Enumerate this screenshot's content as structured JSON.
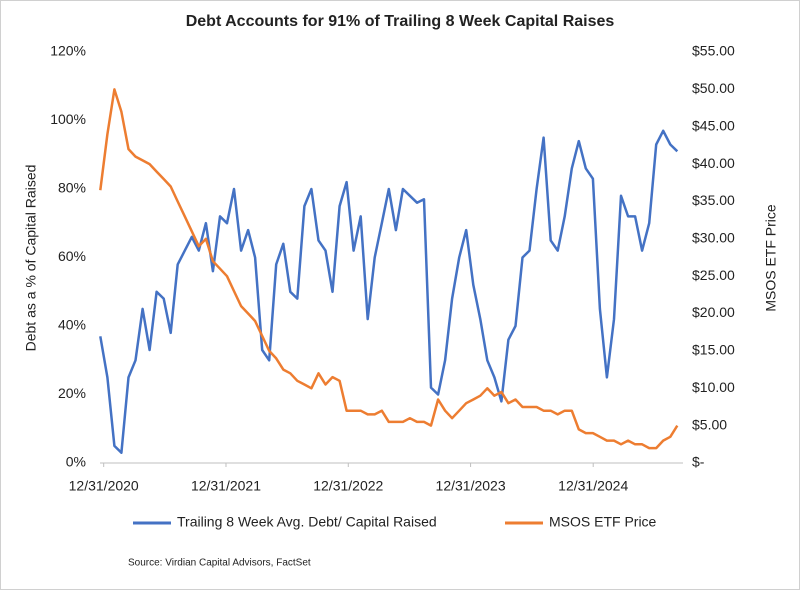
{
  "chart_data": {
    "type": "line",
    "title": "Debt Accounts for 91% of Trailing 8 Week Capital Raises",
    "y_label": "Debt as a % of Capital Raised",
    "y2_label": "MSOS ETF Price",
    "source": "Source: Virdian Capital Advisors, FactSet",
    "x": [
      "2020-12-21",
      "2021-01-11",
      "2021-02-01",
      "2021-02-22",
      "2021-03-15",
      "2021-04-05",
      "2021-04-26",
      "2021-05-17",
      "2021-06-07",
      "2021-06-28",
      "2021-07-19",
      "2021-08-09",
      "2021-08-30",
      "2021-09-20",
      "2021-10-11",
      "2021-11-01",
      "2021-11-22",
      "2021-12-13",
      "2022-01-03",
      "2022-01-24",
      "2022-02-14",
      "2022-03-07",
      "2022-03-28",
      "2022-04-18",
      "2022-05-09",
      "2022-05-30",
      "2022-06-20",
      "2022-07-11",
      "2022-08-01",
      "2022-08-22",
      "2022-09-12",
      "2022-10-03",
      "2022-10-24",
      "2022-11-14",
      "2022-12-05",
      "2022-12-26",
      "2023-01-16",
      "2023-02-06",
      "2023-02-27",
      "2023-03-20",
      "2023-04-10",
      "2023-05-01",
      "2023-05-22",
      "2023-06-12",
      "2023-07-03",
      "2023-07-24",
      "2023-08-14",
      "2023-09-04",
      "2023-09-25",
      "2023-10-16",
      "2023-11-06",
      "2023-11-27",
      "2023-12-18",
      "2024-01-08",
      "2024-01-29",
      "2024-02-19",
      "2024-03-11",
      "2024-04-01",
      "2024-04-22",
      "2024-05-13",
      "2024-06-03",
      "2024-06-24",
      "2024-07-15",
      "2024-08-05",
      "2024-08-26",
      "2024-09-16",
      "2024-10-07",
      "2024-10-28",
      "2024-11-18",
      "2024-12-09",
      "2024-12-30",
      "2025-01-20",
      "2025-02-10",
      "2025-03-03",
      "2025-03-24",
      "2025-04-14",
      "2025-05-05",
      "2025-05-26",
      "2025-06-16",
      "2025-07-07",
      "2025-07-28",
      "2025-08-18",
      "2025-09-08"
    ],
    "xlim": [
      "2020-12-20",
      "2025-09-25"
    ],
    "xticks": [
      {
        "value": "2020-12-31",
        "label": "12/31/2020"
      },
      {
        "value": "2021-12-31",
        "label": "12/31/2021"
      },
      {
        "value": "2022-12-31",
        "label": "12/31/2022"
      },
      {
        "value": "2023-12-31",
        "label": "12/31/2023"
      },
      {
        "value": "2024-12-31",
        "label": "12/31/2024"
      }
    ],
    "ylim": [
      0,
      120
    ],
    "yticks": [
      {
        "value": 0,
        "label": "0%"
      },
      {
        "value": 20,
        "label": "20%"
      },
      {
        "value": 40,
        "label": "40%"
      },
      {
        "value": 60,
        "label": "60%"
      },
      {
        "value": 80,
        "label": "80%"
      },
      {
        "value": 100,
        "label": "100%"
      },
      {
        "value": 120,
        "label": "120%"
      }
    ],
    "y2lim": [
      0,
      55
    ],
    "y2ticks": [
      {
        "value": 0,
        "label": "$-"
      },
      {
        "value": 5,
        "label": "$5.00"
      },
      {
        "value": 10,
        "label": "$10.00"
      },
      {
        "value": 15,
        "label": "$15.00"
      },
      {
        "value": 20,
        "label": "$20.00"
      },
      {
        "value": 25,
        "label": "$25.00"
      },
      {
        "value": 30,
        "label": "$30.00"
      },
      {
        "value": 35,
        "label": "$35.00"
      },
      {
        "value": 40,
        "label": "$40.00"
      },
      {
        "value": 45,
        "label": "$45.00"
      },
      {
        "value": 50,
        "label": "$50.00"
      },
      {
        "value": 55,
        "label": "$55.00"
      }
    ],
    "grid": false,
    "legend": "bottom",
    "series": [
      {
        "name": "Trailing 8 Week Avg. Debt/ Capital Raised",
        "color": "#4472c4",
        "axis": "y",
        "values": [
          37,
          25,
          5,
          3,
          25,
          30,
          45,
          33,
          50,
          48,
          38,
          58,
          62,
          66,
          62,
          70,
          56,
          72,
          70,
          80,
          62,
          68,
          60,
          33,
          30,
          58,
          64,
          50,
          48,
          75,
          80,
          65,
          62,
          50,
          75,
          82,
          62,
          72,
          42,
          60,
          70,
          80,
          68,
          80,
          78,
          76,
          77,
          22,
          20,
          30,
          48,
          60,
          68,
          52,
          42,
          30,
          25,
          18,
          36,
          40,
          60,
          62,
          80,
          95,
          65,
          62,
          72,
          86,
          94,
          86,
          83,
          45,
          25,
          42,
          78,
          72,
          72,
          62,
          70,
          93,
          97,
          93,
          91
        ]
      },
      {
        "name": "MSOS ETF Price",
        "color": "#ed7d31",
        "axis": "y2",
        "values": [
          36.5,
          44,
          50,
          47,
          42,
          41,
          40.5,
          40,
          39,
          38,
          37,
          35,
          33,
          31,
          29,
          30,
          27,
          26,
          25,
          23,
          21,
          20,
          19,
          17,
          15,
          14,
          12.5,
          12,
          11,
          10.5,
          10,
          12,
          10.5,
          11.5,
          11,
          7,
          7,
          7,
          6.5,
          6.5,
          7,
          5.5,
          5.5,
          5.5,
          6,
          5.5,
          5.5,
          5,
          8.5,
          7,
          6,
          7,
          8,
          8.5,
          9,
          10,
          9,
          9.5,
          8,
          8.5,
          7.5,
          7.5,
          7.5,
          7,
          7,
          6.5,
          7,
          7,
          4.5,
          4,
          4,
          3.5,
          3,
          3,
          2.5,
          3,
          2.5,
          2.5,
          2,
          2,
          3,
          3.5,
          5
        ]
      }
    ]
  }
}
